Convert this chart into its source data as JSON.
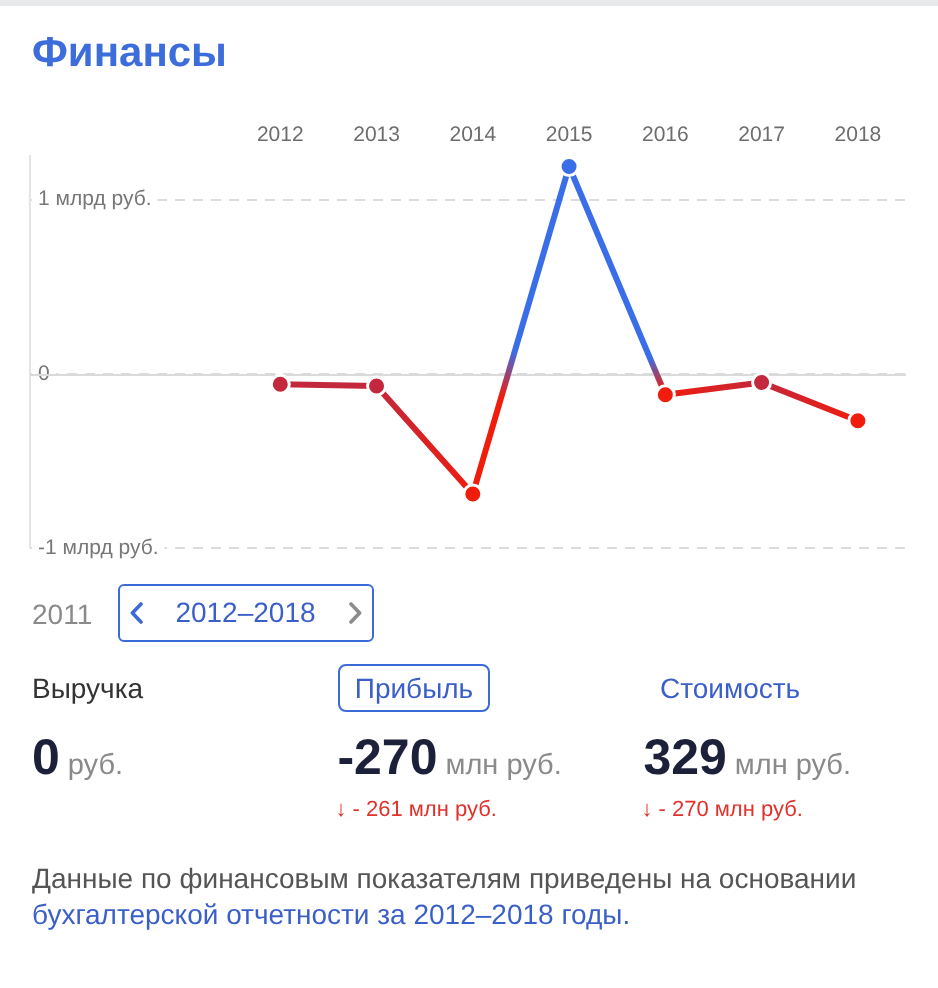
{
  "chart_data": [
    {
      "type": "line",
      "title": "Финансы",
      "x": [
        2012,
        2013,
        2014,
        2015,
        2016,
        2017,
        2018
      ],
      "xlim": [
        2009.4,
        2018.5
      ],
      "xticks": [
        2012,
        2013,
        2014,
        2015,
        2016,
        2017,
        2018
      ],
      "ylim": [
        -1,
        1.25
      ],
      "yticks": [
        {
          "value": -1,
          "label": "-1 млрд руб."
        },
        0,
        {
          "value": 1,
          "label": "1 млрд руб."
        }
      ],
      "grid": "y",
      "marker": "circle",
      "ref_lines": [
        {
          "axis": "y",
          "value": 0,
          "color": "#dadada",
          "line_style": "solid"
        }
      ],
      "series": [
        {
          "colors": [
            "#c3283c",
            "#c3283c",
            "#f01c0c",
            "#3a6ee8",
            "#f01c0c",
            "#c3283c",
            "#f01c0c"
          ],
          "values": [
            -0.06,
            -0.07,
            -0.69,
            1.19,
            -0.12,
            -0.05,
            -0.27
          ]
        }
      ]
    },
    {
      "type": "other",
      "annotations": [
        "2011",
        "2012–2018",
        "Выручка",
        "Прибыль",
        "Стоимость",
        "0",
        "руб.",
        "-270",
        "млн руб.",
        "329",
        "млн руб.",
        "↓ - 261 млн руб.",
        "↓ - 270 млн руб.",
        "Данные по финансовым показателям приведены на основании ",
        "бухгалтерской отчетности за 2012–2018 годы."
      ]
    }
  ]
}
